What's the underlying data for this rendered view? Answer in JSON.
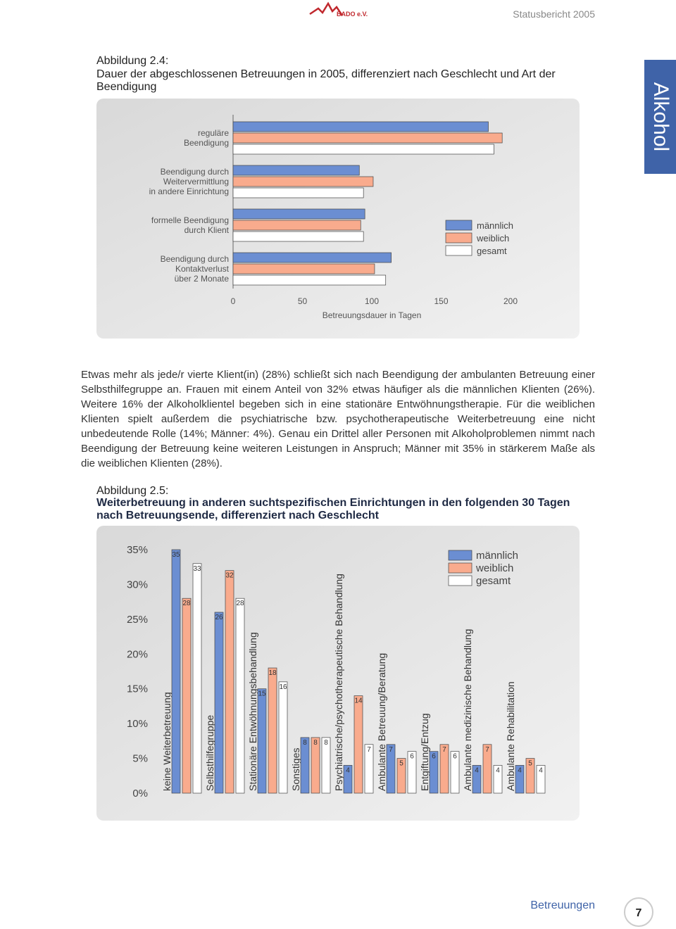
{
  "header": {
    "logo": "BADO e.V.",
    "title": "Statusbericht 2005"
  },
  "side_tab": "Alkohol",
  "paragraph": "Etwas mehr als jede/r vierte Klient(in) (28%) schließt sich nach Beendigung der ambulanten Betreuung einer Selbsthilfegruppe an. Frauen mit einem Anteil von 32% etwas häufiger als die männlichen Klienten (26%). Weitere 16% der Alkoholklientel begeben sich in eine stationäre Entwöhnungstherapie. Für die weiblichen Klienten spielt außerdem die psychiatrische bzw. psychotherapeutische Weiterbetreuung eine nicht unbedeutende Rolle (14%; Männer: 4%). Genau ein Drittel aller Personen mit Alkoholproblemen nimmt nach Beendigung der Betreuung keine weiteren Leistungen in Anspruch; Männer mit 35% in stärkerem Maße als die weiblichen Klienten (28%).",
  "footer": {
    "section": "Betreuungen",
    "page": 7
  },
  "chart_data": [
    {
      "type": "hbar",
      "label": "Abbildung 2.4:",
      "title": "Dauer der abgeschlossenen Betreuungen in 2005, differenziert nach Geschlecht und Art der Beendigung",
      "categories": [
        "reguläre\nBeendigung",
        "Beendigung durch\nWeitervermittlung\nin andere Einrichtung",
        "formelle Beendigung\ndurch Klient",
        "Beendigung durch\nKontaktverlust\nüber 2 Monate"
      ],
      "series": [
        {
          "name": "männlich",
          "color": "#6b8ed2",
          "values": [
            184,
            91,
            95,
            114
          ]
        },
        {
          "name": "weiblich",
          "color": "#f9ab8d",
          "values": [
            194,
            101,
            92,
            102
          ]
        },
        {
          "name": "gesamt",
          "color": "#ffffff",
          "values": [
            188,
            94,
            94,
            110
          ]
        }
      ],
      "xlim": [
        0,
        200
      ],
      "xticks": [
        0,
        50,
        100,
        150,
        200
      ],
      "xlabel": "Betreuungsdauer in Tagen",
      "legend": "right"
    },
    {
      "type": "bar",
      "label": "Abbildung 2.5:",
      "title": "Weiterbetreuung in anderen suchtspezifischen Einrichtungen in den folgenden 30 Tagen nach Betreuungsende, differenziert nach Geschlecht",
      "categories": [
        "keine Weiterbetreuung",
        "Selbsthilfegruppe",
        "Stationäre Entwöhnungsbehandlung",
        "Sonstiges",
        "Psychiatrische/psychotherapeutische Behandlung",
        "Ambulante Betreuung/Beratung",
        "Entgiftung/Entzug",
        "Ambulante medizinische Behandlung",
        "Ambulante Rehabilitation"
      ],
      "series": [
        {
          "name": "männlich",
          "color": "#6b8ed2",
          "values": [
            35,
            26,
            15,
            8,
            4,
            7,
            6,
            4,
            4
          ]
        },
        {
          "name": "weiblich",
          "color": "#f9ab8d",
          "values": [
            28,
            32,
            18,
            8,
            14,
            5,
            7,
            7,
            5
          ]
        },
        {
          "name": "gesamt",
          "color": "#ffffff",
          "values": [
            33,
            28,
            16,
            8,
            7,
            6,
            6,
            4,
            4
          ]
        }
      ],
      "ylim": [
        0,
        35
      ],
      "yticks": [
        {
          "value": 0,
          "label": "0%"
        },
        {
          "value": 5,
          "label": "5%"
        },
        {
          "value": 10,
          "label": "10%"
        },
        {
          "value": 15,
          "label": "15%"
        },
        {
          "value": 20,
          "label": "20%"
        },
        {
          "value": 25,
          "label": "25%"
        },
        {
          "value": 30,
          "label": "30%"
        },
        {
          "value": 35,
          "label": "35%"
        }
      ],
      "data_labels": true,
      "legend": "top-right"
    }
  ]
}
